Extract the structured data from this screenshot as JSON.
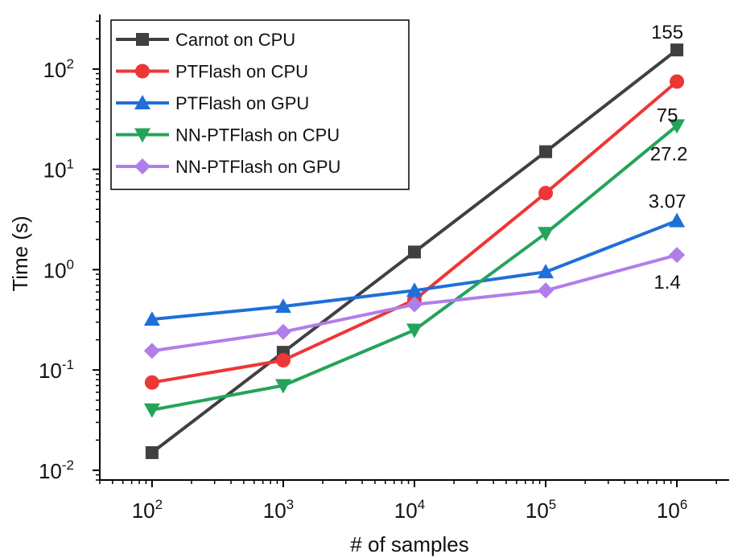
{
  "chart_data": {
    "type": "line",
    "xlabel": "# of samples",
    "ylabel": "Time (s)",
    "x_scale": "log",
    "y_scale": "log",
    "x": [
      100,
      1000,
      10000,
      100000,
      1000000
    ],
    "xlim": [
      40,
      2500000
    ],
    "ylim": [
      0.008,
      350
    ],
    "x_ticks": [
      {
        "value": 100,
        "base": "10",
        "exp": "2"
      },
      {
        "value": 1000,
        "base": "10",
        "exp": "3"
      },
      {
        "value": 10000,
        "base": "10",
        "exp": "4"
      },
      {
        "value": 100000,
        "base": "10",
        "exp": "5"
      },
      {
        "value": 1000000,
        "base": "10",
        "exp": "6"
      }
    ],
    "y_ticks": [
      {
        "value": 0.01,
        "base": "10",
        "exp": "-2"
      },
      {
        "value": 0.1,
        "base": "10",
        "exp": "-1"
      },
      {
        "value": 1,
        "base": "10",
        "exp": "0"
      },
      {
        "value": 10,
        "base": "10",
        "exp": "1"
      },
      {
        "value": 100,
        "base": "10",
        "exp": "2"
      }
    ],
    "grid": false,
    "legend_position": "top-left",
    "series": [
      {
        "name": "Carnot on CPU",
        "color": "#404040",
        "marker": "square",
        "values": [
          0.015,
          0.15,
          1.5,
          15,
          155
        ]
      },
      {
        "name": "PTFlash on CPU",
        "color": "#ee3636",
        "marker": "circle",
        "values": [
          0.075,
          0.125,
          0.5,
          5.8,
          75
        ]
      },
      {
        "name": "PTFlash on GPU",
        "color": "#1f6fd8",
        "marker": "triangle-up",
        "values": [
          0.32,
          0.43,
          0.62,
          0.95,
          3.07
        ]
      },
      {
        "name": "NN-PTFlash on CPU",
        "color": "#23a45a",
        "marker": "triangle-down",
        "values": [
          0.04,
          0.07,
          0.25,
          2.3,
          27.2
        ]
      },
      {
        "name": "NN-PTFlash on GPU",
        "color": "#b07ee8",
        "marker": "diamond",
        "values": [
          0.155,
          0.24,
          0.45,
          0.62,
          1.4
        ]
      }
    ],
    "annotations": [
      {
        "text": "155",
        "series": 0
      },
      {
        "text": "75",
        "series": 1
      },
      {
        "text": "27.2",
        "series": 3
      },
      {
        "text": "3.07",
        "series": 2
      },
      {
        "text": "1.4",
        "series": 4
      }
    ]
  }
}
